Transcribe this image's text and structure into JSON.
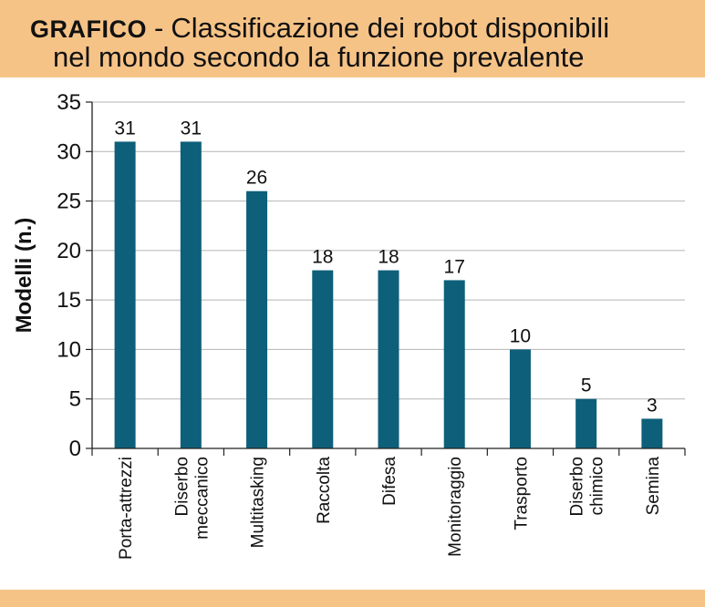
{
  "header": {
    "tag": "GRAFICO",
    "separator": "-",
    "title_line1": "Classificazione dei robot disponibili",
    "title_line2": "nel mondo secondo la funzione prevalente"
  },
  "colors": {
    "bar": "#0d5f7a",
    "header_bg": "#f6c387",
    "grid": "#b5b5b5",
    "axis": "#222222"
  },
  "chart_data": {
    "type": "bar",
    "title": "Classificazione dei robot disponibili nel mondo secondo la funzione prevalente",
    "xlabel": "",
    "ylabel": "Modelli (n.)",
    "ylim": [
      0,
      35
    ],
    "yticks": [
      0,
      5,
      10,
      15,
      20,
      25,
      30,
      35
    ],
    "grid": true,
    "categories": [
      [
        "Porta-attrezzi"
      ],
      [
        "Diserbo",
        "meccanico"
      ],
      [
        "Multitasking"
      ],
      [
        "Raccolta"
      ],
      [
        "Difesa"
      ],
      [
        "Monitoraggio"
      ],
      [
        "Trasporto"
      ],
      [
        "Diserbo",
        "chimico"
      ],
      [
        "Semina"
      ]
    ],
    "values": [
      31,
      31,
      26,
      18,
      18,
      17,
      10,
      5,
      3
    ]
  }
}
